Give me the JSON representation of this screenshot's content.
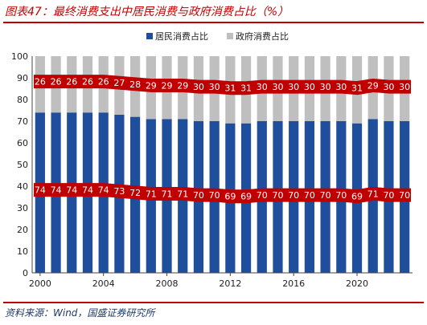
{
  "figure_title": "图表47：最终消费支出中居民消费与政府消费占比（%）",
  "source_note": "资料来源：Wind，国盛证券研究所",
  "chart_data": {
    "type": "bar",
    "stacked": true,
    "percent": true,
    "categories": [
      "2000",
      "2001",
      "2002",
      "2003",
      "2004",
      "2005",
      "2006",
      "2007",
      "2008",
      "2009",
      "2010",
      "2011",
      "2012",
      "2013",
      "2014",
      "2015",
      "2016",
      "2017",
      "2018",
      "2019",
      "2020",
      "2021",
      "2022",
      "2023"
    ],
    "x_tick_labels": [
      "2000",
      "2004",
      "2008",
      "2012",
      "2016",
      "2020"
    ],
    "series": [
      {
        "name": "居民消费占比",
        "color": "#1f4e9c",
        "values": [
          74,
          74,
          74,
          74,
          74,
          73,
          72,
          71,
          71,
          71,
          70,
          70,
          69,
          69,
          70,
          70,
          70,
          70,
          70,
          70,
          69,
          71,
          70,
          70
        ]
      },
      {
        "name": "政府消费占比",
        "color": "#bfbfbf",
        "values": [
          26,
          26,
          26,
          26,
          26,
          27,
          28,
          29,
          29,
          29,
          30,
          30,
          31,
          31,
          30,
          30,
          30,
          30,
          30,
          30,
          31,
          29,
          30,
          30
        ]
      }
    ],
    "label_band_color": "#c00000",
    "ylim": [
      0,
      100
    ],
    "yticks": [
      0,
      10,
      20,
      30,
      40,
      50,
      60,
      70,
      80,
      90,
      100
    ],
    "legend_position": "top",
    "grid": false
  }
}
